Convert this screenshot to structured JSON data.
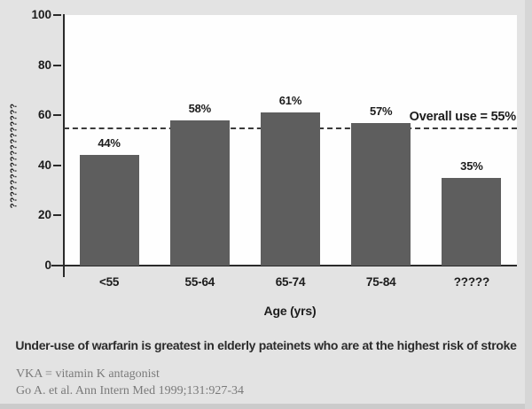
{
  "chart_data": {
    "type": "bar",
    "categories": [
      "<55",
      "55-64",
      "65-74",
      "75-84",
      "?????"
    ],
    "values": [
      44,
      58,
      61,
      57,
      35
    ],
    "bar_labels": [
      "44%",
      "58%",
      "61%",
      "57%",
      "35%"
    ],
    "xlabel": "Age (yrs)",
    "ylabel": "??????????????????",
    "ylim": [
      0,
      100
    ],
    "yticks": [
      0,
      20,
      40,
      60,
      80,
      100
    ],
    "grid": false,
    "legend": null,
    "reference_line": {
      "value": 55,
      "label": "Overall use = 55%"
    }
  },
  "caption": "Under-use of warfarin is greatest in elderly pateinets who are at the highest risk of stroke",
  "footnotes": [
    "VKA = vitamin K antagonist",
    "Go A. et al. Ann Intern Med 1999;131:927-34"
  ],
  "colors": {
    "background": "#e3e3e3",
    "plot_background": "#fefefe",
    "bar": "#5e5e5e",
    "axis": "#2a2a2a",
    "text": "#1c1c1c",
    "caption_text": "#2b2b2b",
    "footnote_text": "#7a7a7a",
    "reference_line": "#3a3a3a"
  }
}
